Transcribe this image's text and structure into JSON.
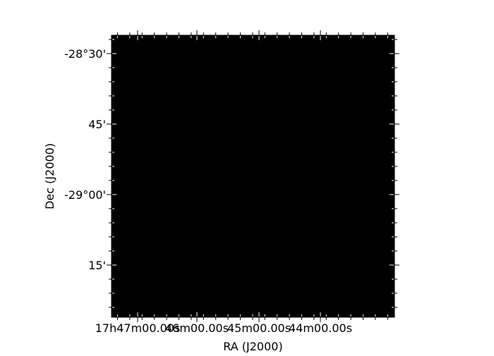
{
  "chart_data": {
    "type": "heatmap",
    "title": "",
    "xlabel": "RA (J2000)",
    "ylabel": "Dec (J2000)",
    "image_fill": "#000000",
    "grid": false,
    "x_ticks": [
      {
        "label": "17h47m00.00s"
      },
      {
        "label": "46m00.00s"
      },
      {
        "label": "45m00.00s"
      },
      {
        "label": "44m00.00s"
      }
    ],
    "y_ticks": [
      {
        "label": "-28°30'"
      },
      {
        "label": "45'"
      },
      {
        "label": "-29°00'"
      },
      {
        "label": "15'"
      }
    ]
  }
}
